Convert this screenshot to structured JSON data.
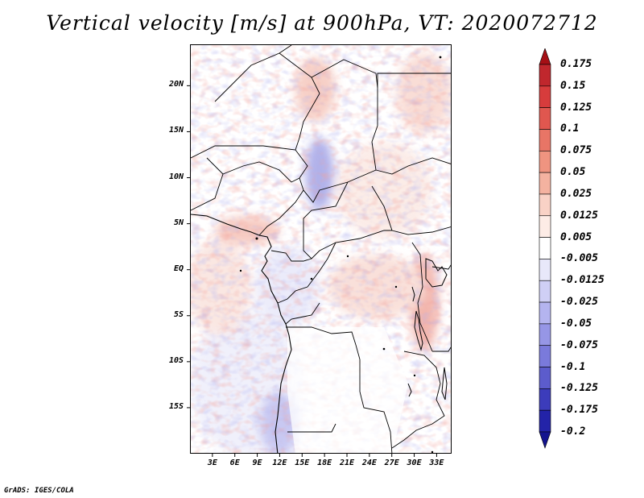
{
  "title": "Vertical velocity [m/s] at 900hPa, VT: 2020072712",
  "credit": "GrADS: IGES/COLA",
  "map": {
    "lat_range": [
      -20,
      24.5
    ],
    "lon_range": [
      0,
      35
    ],
    "lat_ticks": [
      {
        "value": 20,
        "label": "20N"
      },
      {
        "value": 15,
        "label": "15N"
      },
      {
        "value": 10,
        "label": "10N"
      },
      {
        "value": 5,
        "label": "5N"
      },
      {
        "value": 0,
        "label": "EQ"
      },
      {
        "value": -5,
        "label": "5S"
      },
      {
        "value": -10,
        "label": "10S"
      },
      {
        "value": -15,
        "label": "15S"
      }
    ],
    "lon_ticks": [
      {
        "value": 3,
        "label": "3E"
      },
      {
        "value": 6,
        "label": "6E"
      },
      {
        "value": 9,
        "label": "9E"
      },
      {
        "value": 12,
        "label": "12E"
      },
      {
        "value": 15,
        "label": "15E"
      },
      {
        "value": 18,
        "label": "18E"
      },
      {
        "value": 21,
        "label": "21E"
      },
      {
        "value": 24,
        "label": "24E"
      },
      {
        "value": 27,
        "label": "27E"
      },
      {
        "value": 30,
        "label": "30E"
      },
      {
        "value": 33,
        "label": "33E"
      }
    ]
  },
  "colorbar": {
    "labels": [
      "0.175",
      "0.15",
      "0.125",
      "0.1",
      "0.075",
      "0.05",
      "0.025",
      "0.0125",
      "0.005",
      "-0.005",
      "-0.0125",
      "-0.025",
      "-0.05",
      "-0.075",
      "-0.1",
      "-0.125",
      "-0.175",
      "-0.2"
    ],
    "colors": [
      "#a50f15",
      "#c0272d",
      "#d73c3c",
      "#e0574f",
      "#e87566",
      "#ef9480",
      "#f4b2a0",
      "#f9d2c6",
      "#fdece6",
      "#ffffff",
      "#e8e8fa",
      "#cfcff5",
      "#b4b4ef",
      "#9696e6",
      "#7a7adb",
      "#5c5ccc",
      "#3c3cbb",
      "#2323a8",
      "#14148f"
    ]
  },
  "legend_title": ""
}
